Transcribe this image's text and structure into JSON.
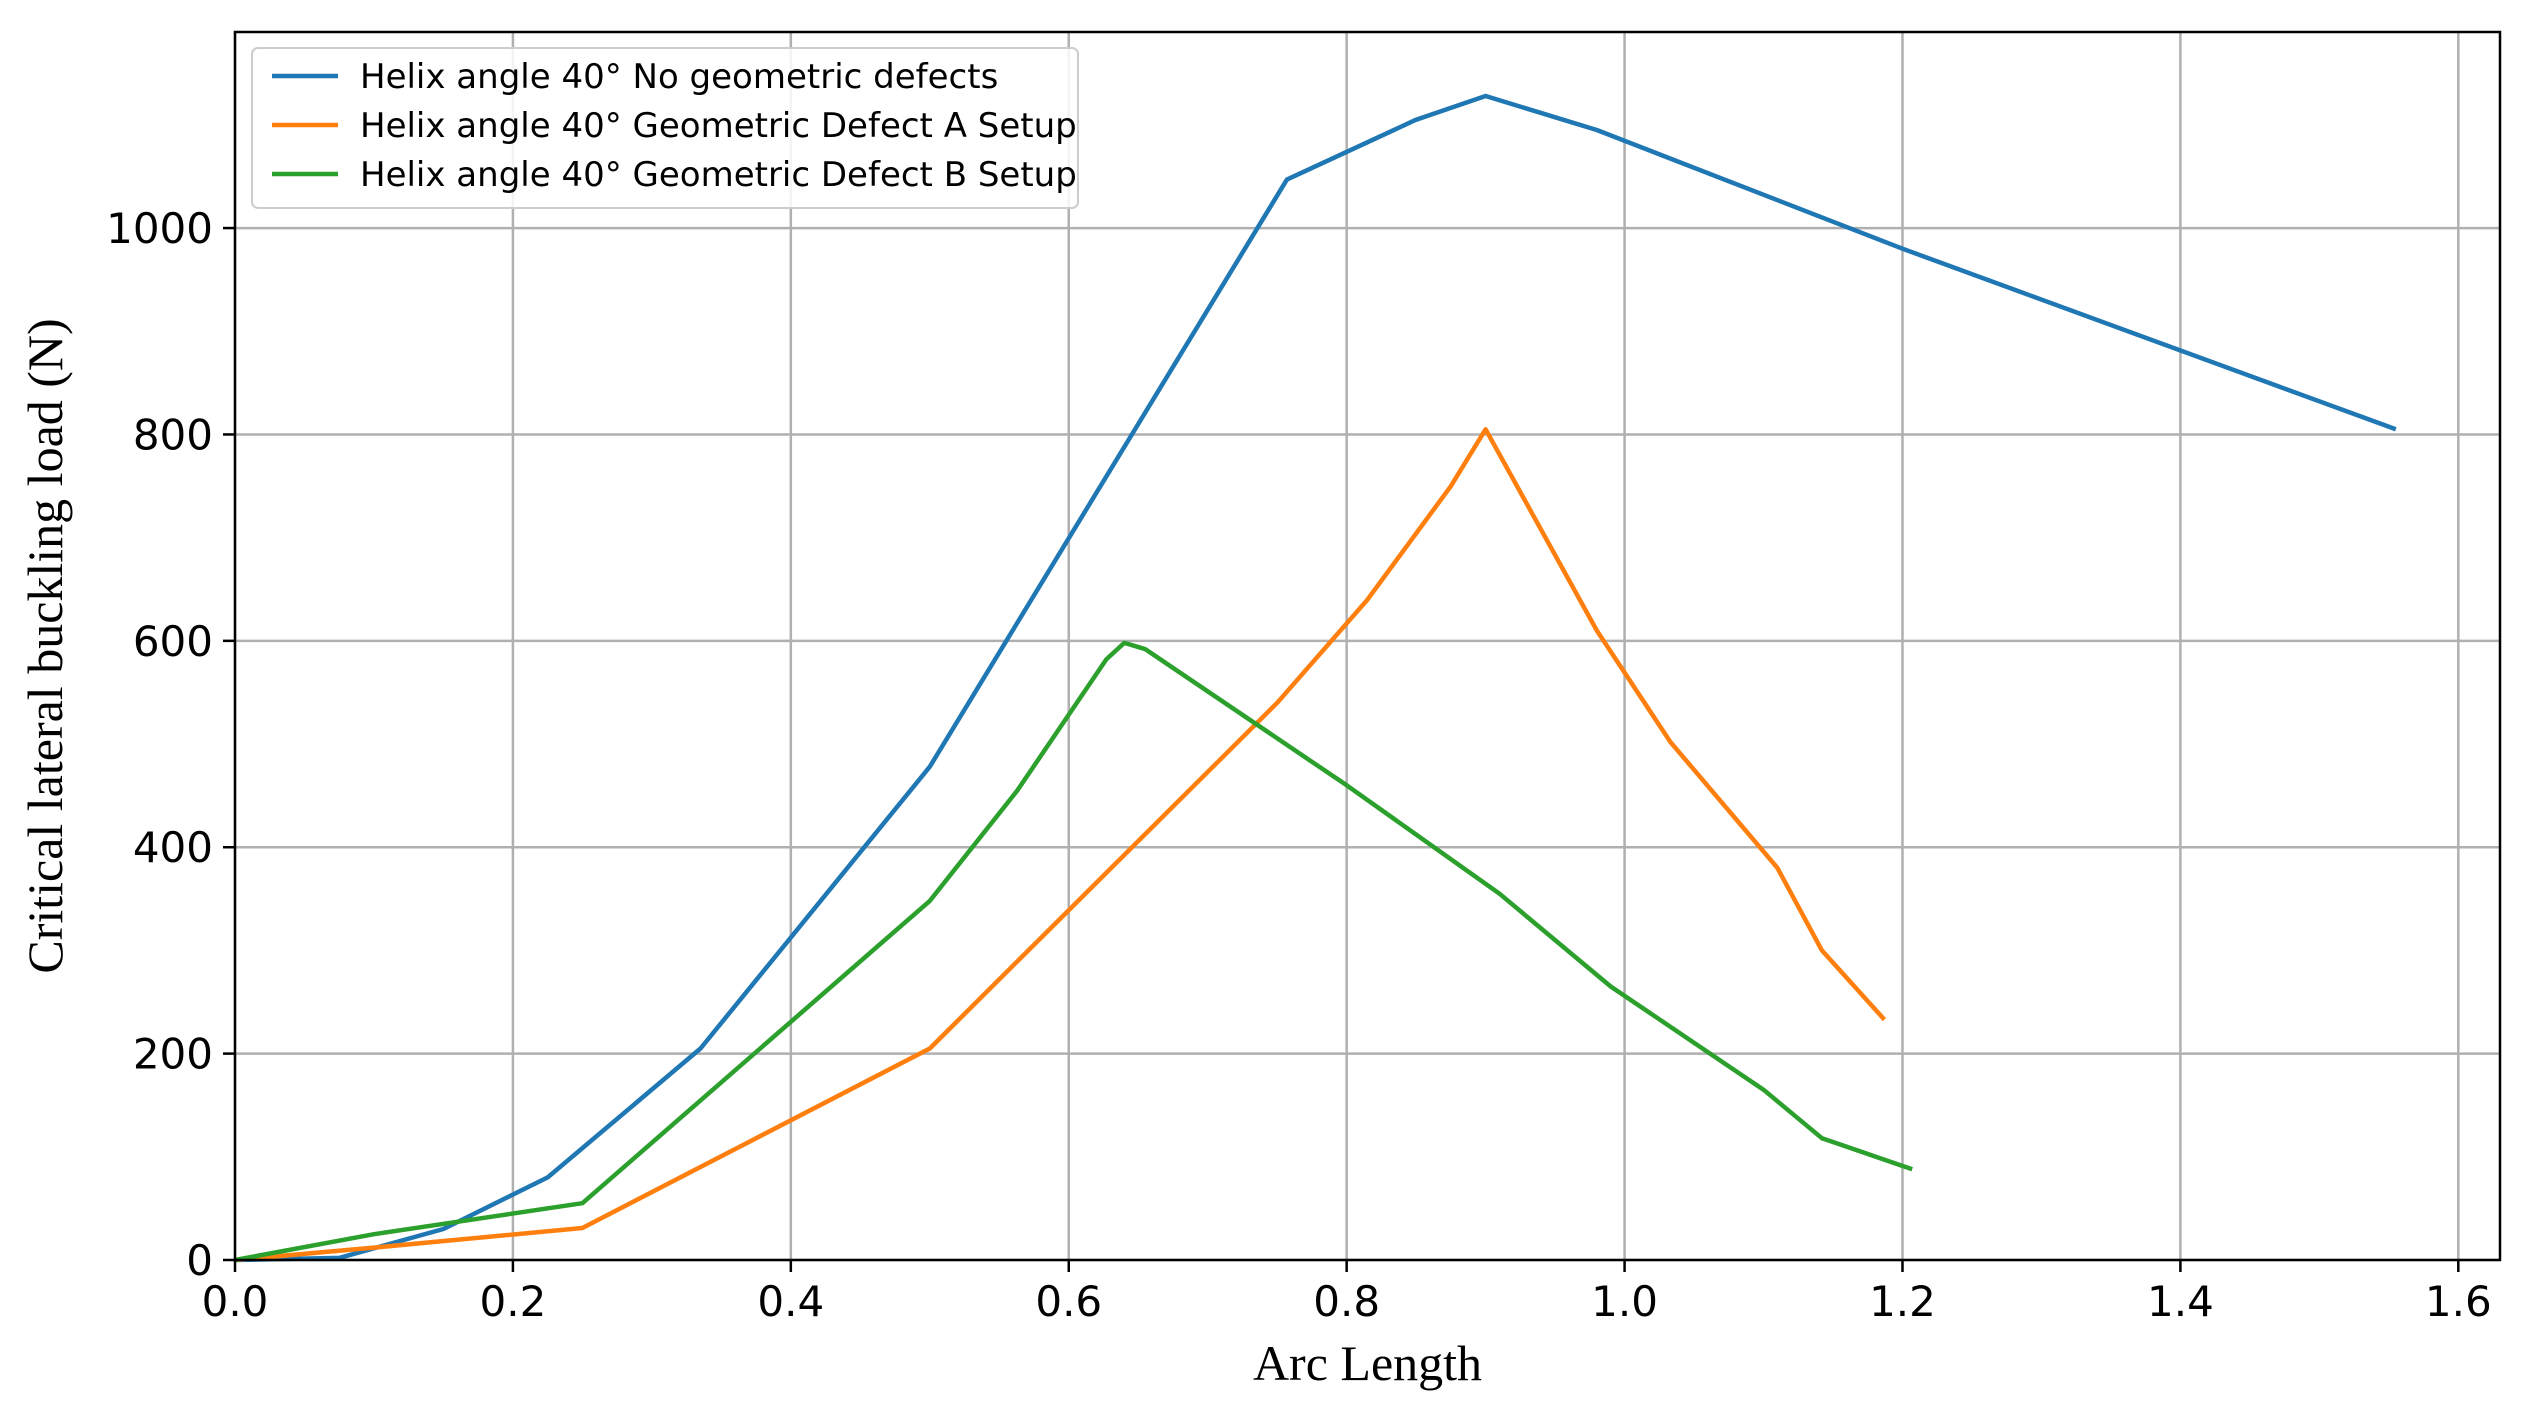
{
  "chart_data": {
    "type": "line",
    "title": "",
    "xlabel": "Arc Length",
    "ylabel": "Critical lateral buckling load (N)",
    "xlim": [
      0.0,
      1.63
    ],
    "ylim": [
      0,
      1190
    ],
    "grid": true,
    "legend_location": "top-left",
    "x_ticks": [
      0.0,
      0.2,
      0.4,
      0.6,
      0.8,
      1.0,
      1.2,
      1.4,
      1.6
    ],
    "x_tick_labels": [
      "0.0",
      "0.2",
      "0.4",
      "0.6",
      "0.8",
      "1.0",
      "1.2",
      "1.4",
      "1.6"
    ],
    "y_ticks": [
      0,
      200,
      400,
      600,
      800,
      1000
    ],
    "y_tick_labels": [
      "0",
      "200",
      "400",
      "600",
      "800",
      "1000"
    ],
    "series": [
      {
        "name": "Helix angle 40° No geometric defects",
        "color": "#1f77b4",
        "x": [
          0.0,
          0.075,
          0.15,
          0.225,
          0.335,
          0.5,
          0.757,
          0.85,
          0.9,
          0.98,
          1.2,
          1.555
        ],
        "y": [
          0,
          2,
          30,
          80,
          205,
          478,
          1047,
          1105,
          1128,
          1095,
          980,
          805
        ]
      },
      {
        "name": "Helix angle 40° Geometric Defect A Setup",
        "color": "#ff7f0e",
        "x": [
          0.0,
          0.1,
          0.25,
          0.5,
          0.75,
          0.815,
          0.875,
          0.9,
          0.98,
          1.033,
          1.11,
          1.142,
          1.187
        ],
        "y": [
          0,
          12,
          31,
          205,
          540,
          640,
          750,
          805,
          610,
          502,
          380,
          300,
          233
        ]
      },
      {
        "name": "Helix angle 40° Geometric Defect B Setup",
        "color": "#2ca02c",
        "x": [
          0.0,
          0.1,
          0.25,
          0.5,
          0.563,
          0.627,
          0.64,
          0.655,
          0.8,
          0.91,
          0.99,
          1.1,
          1.142,
          1.207
        ],
        "y": [
          0,
          25,
          55,
          348,
          455,
          582,
          598,
          592,
          460,
          355,
          265,
          165,
          118,
          88
        ]
      }
    ]
  }
}
